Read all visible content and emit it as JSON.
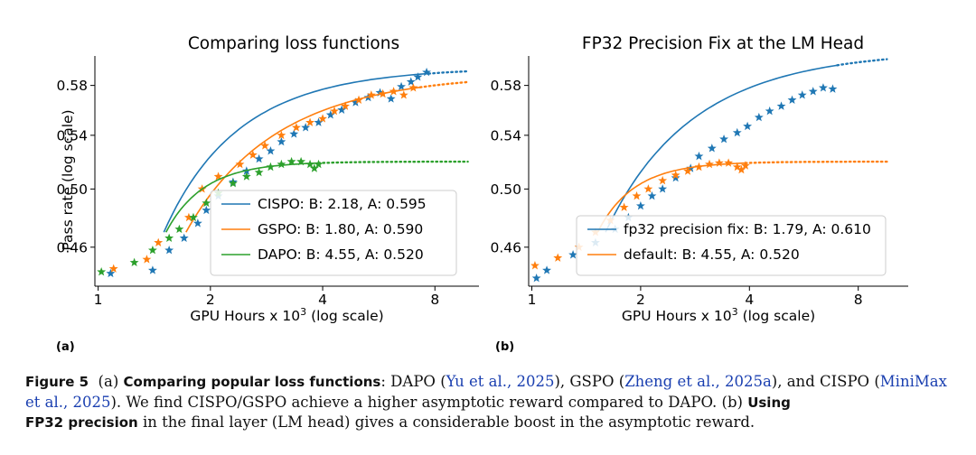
{
  "chart_data": [
    {
      "type": "scatter",
      "title": "Comparing loss functions",
      "xlabel": "GPU Hours x 10^3 (log scale)",
      "xlabel_main": "GPU Hours x 10",
      "xlabel_exp": "3",
      "xlabel_tail": " (log scale)",
      "ylabel": "Pass rate (log scale)",
      "x_scale": "log",
      "y_scale": "log",
      "xlim": [
        0.98,
        10.5
      ],
      "ylim": [
        0.435,
        0.605
      ],
      "xticks": [
        1,
        2,
        4,
        8
      ],
      "xtick_labels": [
        "1",
        "2",
        "4",
        "8"
      ],
      "yticks": [
        0.46,
        0.5,
        0.54,
        0.58
      ],
      "ytick_labels": [
        "0.46",
        "0.50",
        "0.54",
        "0.58"
      ],
      "legend_position": "lower-right",
      "series": [
        {
          "name": "CISPO: B: 2.18, A: 0.595",
          "color": "#1f77b4",
          "points": [
            [
              1.08,
              0.443
            ],
            [
              1.4,
              0.445
            ],
            [
              1.55,
              0.458
            ],
            [
              1.7,
              0.466
            ],
            [
              1.85,
              0.476
            ],
            [
              1.95,
              0.485
            ],
            [
              2.1,
              0.495
            ],
            [
              2.3,
              0.505
            ],
            [
              2.5,
              0.513
            ],
            [
              2.7,
              0.522
            ],
            [
              2.9,
              0.528
            ],
            [
              3.1,
              0.535
            ],
            [
              3.35,
              0.541
            ],
            [
              3.6,
              0.546
            ],
            [
              3.9,
              0.55
            ],
            [
              4.2,
              0.556
            ],
            [
              4.5,
              0.56
            ],
            [
              4.9,
              0.566
            ],
            [
              5.3,
              0.57
            ],
            [
              5.7,
              0.574
            ],
            [
              6.1,
              0.569
            ],
            [
              6.5,
              0.579
            ],
            [
              6.9,
              0.583
            ],
            [
              7.2,
              0.587
            ],
            [
              7.6,
              0.591
            ]
          ],
          "fit": {
            "B": 2.18,
            "A": 0.595,
            "x0": 1.5,
            "x_end": 7.7,
            "x_dotted_end": 9.8
          }
        },
        {
          "name": "GSPO: B: 1.80, A: 0.590",
          "color": "#ff7f0e",
          "points": [
            [
              1.1,
              0.446
            ],
            [
              1.35,
              0.452
            ],
            [
              1.45,
              0.463
            ],
            [
              1.75,
              0.48
            ],
            [
              1.9,
              0.5
            ],
            [
              2.1,
              0.509
            ],
            [
              2.4,
              0.518
            ],
            [
              2.6,
              0.525
            ],
            [
              2.8,
              0.532
            ],
            [
              3.1,
              0.54
            ],
            [
              3.4,
              0.546
            ],
            [
              3.7,
              0.55
            ],
            [
              4.0,
              0.553
            ],
            [
              4.3,
              0.559
            ],
            [
              4.6,
              0.563
            ],
            [
              5.0,
              0.568
            ],
            [
              5.4,
              0.572
            ],
            [
              5.8,
              0.573
            ],
            [
              6.2,
              0.575
            ],
            [
              6.6,
              0.572
            ],
            [
              7.0,
              0.578
            ]
          ],
          "fit": {
            "B": 1.8,
            "A": 0.59,
            "x0": 1.72,
            "x_end": 7.3,
            "x_dotted_end": 9.8
          }
        },
        {
          "name": "DAPO: B: 4.55, A: 0.520",
          "color": "#2ca02c",
          "points": [
            [
              1.02,
              0.444
            ],
            [
              1.25,
              0.45
            ],
            [
              1.4,
              0.458
            ],
            [
              1.55,
              0.466
            ],
            [
              1.65,
              0.472
            ],
            [
              1.8,
              0.48
            ],
            [
              1.95,
              0.49
            ],
            [
              2.1,
              0.497
            ],
            [
              2.3,
              0.504
            ],
            [
              2.5,
              0.509
            ],
            [
              2.7,
              0.512
            ],
            [
              2.9,
              0.516
            ],
            [
              3.1,
              0.518
            ],
            [
              3.3,
              0.52
            ],
            [
              3.5,
              0.52
            ],
            [
              3.7,
              0.518
            ],
            [
              3.8,
              0.515
            ],
            [
              3.9,
              0.518
            ]
          ],
          "fit": {
            "B": 4.55,
            "A": 0.52,
            "x0": 1.52,
            "x_end": 3.9,
            "x_dotted_end": 9.8
          }
        }
      ]
    },
    {
      "type": "scatter",
      "title": "FP32 Precision Fix at the LM Head",
      "xlabel": "GPU Hours x 10^3 (log scale)",
      "xlabel_main": "GPU Hours x 10",
      "xlabel_exp": "3",
      "xlabel_tail": " (log scale)",
      "ylabel": "",
      "x_scale": "log",
      "y_scale": "log",
      "xlim": [
        0.98,
        11
      ],
      "ylim": [
        0.435,
        0.605
      ],
      "xticks": [
        1,
        2,
        4,
        8
      ],
      "xtick_labels": [
        "1",
        "2",
        "4",
        "8"
      ],
      "yticks": [
        0.46,
        0.5,
        0.54,
        0.58
      ],
      "ytick_labels": [
        "0.46",
        "0.50",
        "0.54",
        "0.58"
      ],
      "legend_position": "lower-right",
      "series": [
        {
          "name": "fp32 precision fix: B: 1.79, A: 0.610",
          "color": "#1f77b4",
          "points": [
            [
              1.03,
              0.44
            ],
            [
              1.1,
              0.445
            ],
            [
              1.3,
              0.455
            ],
            [
              1.5,
              0.463
            ],
            [
              1.7,
              0.472
            ],
            [
              1.85,
              0.48
            ],
            [
              2.0,
              0.488
            ],
            [
              2.15,
              0.495
            ],
            [
              2.3,
              0.5
            ],
            [
              2.5,
              0.508
            ],
            [
              2.75,
              0.515
            ],
            [
              2.9,
              0.524
            ],
            [
              3.15,
              0.53
            ],
            [
              3.4,
              0.537
            ],
            [
              3.7,
              0.542
            ],
            [
              3.95,
              0.547
            ],
            [
              4.25,
              0.554
            ],
            [
              4.55,
              0.559
            ],
            [
              4.9,
              0.563
            ],
            [
              5.25,
              0.568
            ],
            [
              5.6,
              0.572
            ],
            [
              6.0,
              0.575
            ],
            [
              6.4,
              0.578
            ],
            [
              6.8,
              0.577
            ]
          ],
          "fit": {
            "B": 1.79,
            "A": 0.61,
            "x0": 1.6,
            "x_end": 7.0,
            "x_dotted_end": 9.6
          }
        },
        {
          "name": "default: B: 4.55, A: 0.520",
          "color": "#ff7f0e",
          "points": [
            [
              1.02,
              0.448
            ],
            [
              1.18,
              0.453
            ],
            [
              1.35,
              0.46
            ],
            [
              1.5,
              0.47
            ],
            [
              1.65,
              0.478
            ],
            [
              1.8,
              0.487
            ],
            [
              1.95,
              0.495
            ],
            [
              2.1,
              0.5
            ],
            [
              2.3,
              0.506
            ],
            [
              2.5,
              0.51
            ],
            [
              2.7,
              0.513
            ],
            [
              2.9,
              0.516
            ],
            [
              3.1,
              0.518
            ],
            [
              3.3,
              0.519
            ],
            [
              3.5,
              0.519
            ],
            [
              3.7,
              0.516
            ],
            [
              3.8,
              0.514
            ],
            [
              3.9,
              0.517
            ]
          ],
          "fit": {
            "B": 4.55,
            "A": 0.52,
            "x0": 1.52,
            "x_end": 3.9,
            "x_dotted_end": 9.6
          }
        }
      ]
    }
  ],
  "panel_labels": [
    "(a)",
    "(b)"
  ],
  "caption": {
    "fig_label": "Figure 5",
    "part_a": "(a)",
    "a_bold": "Comparing popular loss functions",
    "a_text1": ": DAPO (",
    "ref1": "Yu et al., 2025",
    "a_text2": "), GSPO (",
    "ref2": "Zheng et al., 2025a",
    "a_text3": "), and CISPO (",
    "ref3": "MiniMax et al., 2025",
    "a_text4": "). We find CISPO/GSPO achieve a higher asymptotic reward compared to DAPO. (b) ",
    "b_bold1": "Using",
    "b_bold2": "FP32 precision",
    "b_text": " in the final layer (LM head) gives a considerable boost in the asymptotic reward."
  }
}
